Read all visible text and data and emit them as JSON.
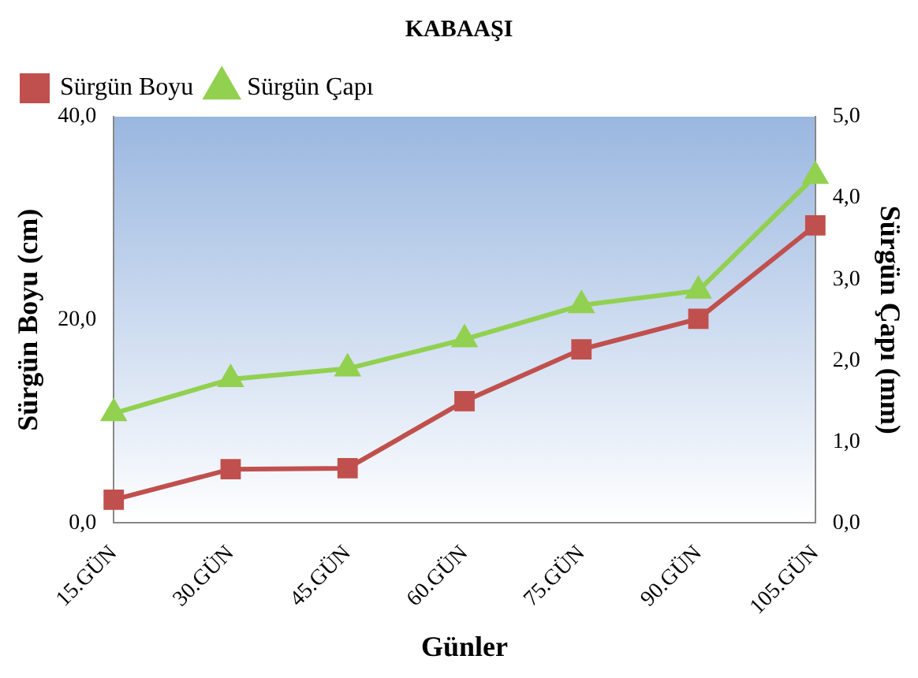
{
  "chart_data": {
    "type": "line",
    "title": "KABAAŞI",
    "xlabel": "Günler",
    "ylabel": "Sürgün Boyu (cm)",
    "y2label": "Sürgün Çapı (mm)",
    "categories": [
      "15.GÜN",
      "30.GÜN",
      "45.GÜN",
      "60.GÜN",
      "75.GÜN",
      "90.GÜN",
      "105.GÜN"
    ],
    "series": [
      {
        "name": "Sürgün Boyu",
        "color": "#c0504d",
        "marker": "square",
        "values": [
          2.3,
          5.3,
          5.4,
          12.0,
          17.1,
          20.1,
          29.3
        ]
      },
      {
        "name": "Sürgün Çapı",
        "color": "#92d050",
        "marker": "triangle",
        "axis": "y2",
        "values": [
          1.35,
          1.77,
          1.9,
          2.26,
          2.68,
          2.86,
          4.27
        ]
      }
    ],
    "ylim": [
      0,
      40
    ],
    "yticks": [
      {
        "value": 0,
        "label": "0,0"
      },
      {
        "value": 20,
        "label": "20,0"
      },
      {
        "value": 40,
        "label": "40,0"
      }
    ],
    "y2lim": [
      0,
      5
    ],
    "y2ticks": [
      {
        "value": 0,
        "label": "0,0"
      },
      {
        "value": 1,
        "label": "1,0"
      },
      {
        "value": 2,
        "label": "2,0"
      },
      {
        "value": 3,
        "label": "3,0"
      },
      {
        "value": 4,
        "label": "4,0"
      },
      {
        "value": 5,
        "label": "5,0"
      }
    ],
    "grid": false,
    "legend": "top left"
  }
}
